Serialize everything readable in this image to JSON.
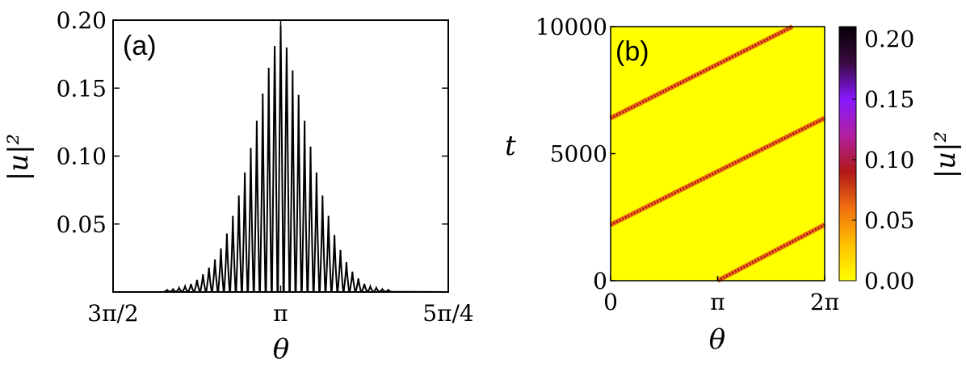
{
  "chart_data": [
    {
      "type": "line",
      "panel_label": "(a)",
      "xlabel": "θ",
      "ylabel": "|u|²",
      "ylim": [
        0,
        0.2
      ],
      "xtick_labels": [
        "3π/2",
        "π",
        "5π/4"
      ],
      "ytick_values": [
        0.05,
        0.1,
        0.15,
        0.2
      ],
      "ytick_labels": [
        "0.05",
        "0.10",
        "0.15",
        "0.20"
      ],
      "series": [
        {
          "peaks": [
            0.0015,
            0.002,
            0.003,
            0.004,
            0.006,
            0.009,
            0.013,
            0.018,
            0.024,
            0.032,
            0.043,
            0.056,
            0.071,
            0.088,
            0.106,
            0.126,
            0.146,
            0.165,
            0.181,
            0.196,
            0.18,
            0.163,
            0.145,
            0.126,
            0.107,
            0.088,
            0.071,
            0.056,
            0.042,
            0.031,
            0.022,
            0.015,
            0.01,
            0.006,
            0.004,
            0.003,
            0.002,
            0.0015
          ],
          "color": "#000000"
        }
      ],
      "grid": false
    },
    {
      "type": "heatmap",
      "panel_label": "(b)",
      "xlabel": "θ",
      "ylabel": "t",
      "xtick_labels": [
        "0",
        "π",
        "2π"
      ],
      "ytick_values": [
        0,
        5000,
        10000
      ],
      "ytick_labels": [
        "0",
        "5000",
        "10000"
      ],
      "ylim": [
        0,
        10000
      ],
      "colorbar": {
        "label": "|u|²",
        "range": [
          0,
          0.21
        ],
        "tick_labels": [
          "0.00",
          "0.05",
          "0.10",
          "0.15",
          "0.20"
        ],
        "tick_values": [
          0,
          0.05,
          0.1,
          0.15,
          0.2
        ],
        "colormap": [
          "#ffff00",
          "#ffc000",
          "#f07010",
          "#b01818",
          "#b020a0",
          "#8818ff",
          "#3a0a40",
          "#050005"
        ]
      },
      "background_value": 0.0,
      "trajectories": [
        {
          "t_start": 0,
          "theta_start": 3.1416,
          "t_end": 2200,
          "theta_end": 6.2832
        },
        {
          "t_start": 2200,
          "theta_start": 0,
          "t_end": 6400,
          "theta_end": 6.2832
        },
        {
          "t_start": 6400,
          "theta_start": 0,
          "t_end": 10000,
          "theta_end": 5.34
        }
      ],
      "grid": false
    }
  ]
}
